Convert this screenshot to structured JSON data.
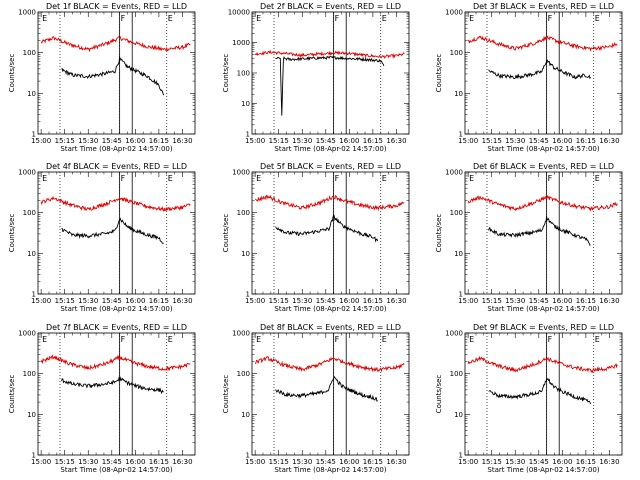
{
  "chart_data": [
    {
      "title": "Det 1f BLACK = Events, RED = LLD",
      "ylabel": "Counts/sec",
      "xlabel": "Start Time (08-Apr-02 14:57:00)",
      "type": "line",
      "yscale": "log",
      "ylim": [
        1,
        1000
      ],
      "xticks": [
        "15:00",
        "15:15",
        "15:30",
        "15:45",
        "16:00",
        "16:15",
        "16:30"
      ],
      "yticks": [
        "1",
        "10",
        "100",
        "1000"
      ],
      "markers": [
        {
          "label": "E",
          "time": "15:00"
        },
        {
          "label": "F",
          "time": "15:50"
        },
        {
          "label": "E",
          "time": "16:20"
        }
      ],
      "solid_lines": [
        "15:50",
        "15:58"
      ],
      "dotted_lines": [
        "15:12",
        "15:50",
        "16:20"
      ],
      "series": [
        {
          "color": "#e00000",
          "x": [
            "15:00",
            "15:08",
            "15:18",
            "15:30",
            "15:42",
            "15:50",
            "15:58",
            "16:08",
            "16:18",
            "16:30",
            "16:35"
          ],
          "y": [
            180,
            230,
            160,
            120,
            170,
            230,
            180,
            140,
            120,
            135,
            160
          ]
        },
        {
          "color": "#000000",
          "x": [
            "15:13",
            "15:20",
            "15:30",
            "15:40",
            "15:47",
            "15:50",
            "15:55",
            "16:00",
            "16:08",
            "16:15",
            "16:18"
          ],
          "y": [
            38,
            28,
            26,
            30,
            35,
            70,
            45,
            36,
            26,
            16,
            9
          ]
        }
      ]
    },
    {
      "title": "Det 2f BLACK = Events, RED = LLD",
      "ylabel": "Counts/sec",
      "xlabel": "Start Time (08-Apr-02 14:57:00)",
      "type": "line",
      "yscale": "log",
      "ylim": [
        1,
        10000
      ],
      "xticks": [
        "15:00",
        "15:15",
        "15:30",
        "15:45",
        "16:00",
        "16:15",
        "16:30"
      ],
      "yticks": [
        "1",
        "10",
        "100",
        "1000",
        "10000"
      ],
      "markers": [
        {
          "label": "E",
          "time": "15:00"
        },
        {
          "label": "F",
          "time": "15:50"
        },
        {
          "label": "E",
          "time": "16:20"
        }
      ],
      "solid_lines": [
        "15:50",
        "15:58"
      ],
      "dotted_lines": [
        "15:12",
        "15:50",
        "16:20"
      ],
      "series": [
        {
          "color": "#e00000",
          "x": [
            "15:00",
            "15:10",
            "15:20",
            "15:30",
            "15:40",
            "15:50",
            "16:00",
            "16:10",
            "16:20",
            "16:30",
            "16:35"
          ],
          "y": [
            420,
            480,
            430,
            380,
            420,
            460,
            440,
            380,
            340,
            370,
            420
          ]
        },
        {
          "color": "#000000",
          "x": [
            "15:13",
            "15:16",
            "15:17",
            "15:18",
            "15:22",
            "15:30",
            "15:40",
            "15:50",
            "16:00",
            "16:10",
            "16:20",
            "16:22"
          ],
          "y": [
            300,
            300,
            4,
            300,
            280,
            290,
            310,
            320,
            300,
            280,
            250,
            170
          ]
        }
      ]
    },
    {
      "title": "Det 3f BLACK = Events, RED = LLD",
      "ylabel": "Counts/sec",
      "xlabel": "Start Time (08-Apr-02 14:57:00)",
      "type": "line",
      "yscale": "log",
      "ylim": [
        1,
        1000
      ],
      "xticks": [
        "15:00",
        "15:15",
        "15:30",
        "15:45",
        "16:00",
        "16:15",
        "16:30"
      ],
      "yticks": [
        "1",
        "10",
        "100",
        "1000"
      ],
      "markers": [
        {
          "label": "E",
          "time": "15:00"
        },
        {
          "label": "F",
          "time": "15:50"
        },
        {
          "label": "E",
          "time": "16:20"
        }
      ],
      "solid_lines": [
        "15:50",
        "15:58"
      ],
      "dotted_lines": [
        "15:12",
        "15:50",
        "16:20"
      ],
      "series": [
        {
          "color": "#e00000",
          "x": [
            "15:00",
            "15:08",
            "15:18",
            "15:30",
            "15:42",
            "15:50",
            "15:58",
            "16:08",
            "16:18",
            "16:30",
            "16:35"
          ],
          "y": [
            190,
            240,
            170,
            125,
            170,
            235,
            185,
            145,
            125,
            140,
            165
          ]
        },
        {
          "color": "#000000",
          "x": [
            "15:13",
            "15:20",
            "15:30",
            "15:40",
            "15:47",
            "15:50",
            "15:55",
            "16:00",
            "16:08",
            "16:15",
            "16:18"
          ],
          "y": [
            36,
            27,
            25,
            29,
            34,
            65,
            42,
            34,
            25,
            28,
            25
          ]
        }
      ]
    },
    {
      "title": "Det 4f BLACK = Events, RED = LLD",
      "ylabel": "Counts/sec",
      "xlabel": "Start Time (08-Apr-02 14:57:00)",
      "type": "line",
      "yscale": "log",
      "ylim": [
        1,
        1000
      ],
      "xticks": [
        "15:00",
        "15:15",
        "15:30",
        "15:45",
        "16:00",
        "16:15",
        "16:30"
      ],
      "yticks": [
        "1",
        "10",
        "100",
        "1000"
      ],
      "markers": [
        {
          "label": "E",
          "time": "15:00"
        },
        {
          "label": "F",
          "time": "15:50"
        },
        {
          "label": "E",
          "time": "16:20"
        }
      ],
      "solid_lines": [
        "15:50",
        "15:58"
      ],
      "dotted_lines": [
        "15:12",
        "15:50",
        "16:20"
      ],
      "series": [
        {
          "color": "#e00000",
          "x": [
            "15:00",
            "15:08",
            "15:18",
            "15:30",
            "15:42",
            "15:50",
            "15:58",
            "16:08",
            "16:18",
            "16:30",
            "16:35"
          ],
          "y": [
            180,
            230,
            160,
            120,
            170,
            230,
            180,
            140,
            120,
            135,
            160
          ]
        },
        {
          "color": "#000000",
          "x": [
            "15:13",
            "15:20",
            "15:30",
            "15:40",
            "15:47",
            "15:50",
            "15:55",
            "16:00",
            "16:08",
            "16:15",
            "16:18"
          ],
          "y": [
            40,
            28,
            27,
            30,
            35,
            72,
            45,
            36,
            28,
            24,
            18
          ]
        }
      ]
    },
    {
      "title": "Det 5f BLACK = Events, RED = LLD",
      "ylabel": "Counts/sec",
      "xlabel": "Start Time (08-Apr-02 14:57:00)",
      "type": "line",
      "yscale": "log",
      "ylim": [
        1,
        1000
      ],
      "xticks": [
        "15:00",
        "15:15",
        "15:30",
        "15:45",
        "16:00",
        "16:15",
        "16:30"
      ],
      "yticks": [
        "1",
        "10",
        "100",
        "1000"
      ],
      "markers": [
        {
          "label": "E",
          "time": "15:00"
        },
        {
          "label": "F",
          "time": "15:50"
        },
        {
          "label": "E",
          "time": "16:20"
        }
      ],
      "solid_lines": [
        "15:50",
        "15:58"
      ],
      "dotted_lines": [
        "15:12",
        "15:50",
        "16:20"
      ],
      "series": [
        {
          "color": "#e00000",
          "x": [
            "15:00",
            "15:08",
            "15:18",
            "15:30",
            "15:42",
            "15:50",
            "15:58",
            "16:08",
            "16:18",
            "16:30",
            "16:35"
          ],
          "y": [
            200,
            250,
            170,
            130,
            180,
            250,
            190,
            150,
            130,
            150,
            175
          ]
        },
        {
          "color": "#000000",
          "x": [
            "15:13",
            "15:20",
            "15:30",
            "15:40",
            "15:47",
            "15:50",
            "15:55",
            "16:00",
            "16:08",
            "16:15",
            "16:18"
          ],
          "y": [
            45,
            32,
            30,
            35,
            40,
            80,
            50,
            40,
            30,
            25,
            20
          ]
        }
      ]
    },
    {
      "title": "Det 6f BLACK = Events, RED = LLD",
      "ylabel": "Counts/sec",
      "xlabel": "Start Time (08-Apr-02 14:57:00)",
      "type": "line",
      "yscale": "log",
      "ylim": [
        1,
        1000
      ],
      "xticks": [
        "15:00",
        "15:15",
        "15:30",
        "15:45",
        "16:00",
        "16:15",
        "16:30"
      ],
      "yticks": [
        "1",
        "10",
        "100",
        "1000"
      ],
      "markers": [
        {
          "label": "E",
          "time": "15:00"
        },
        {
          "label": "F",
          "time": "15:50"
        },
        {
          "label": "E",
          "time": "16:20"
        }
      ],
      "solid_lines": [
        "15:50",
        "15:58"
      ],
      "dotted_lines": [
        "15:12",
        "15:50",
        "16:20"
      ],
      "series": [
        {
          "color": "#e00000",
          "x": [
            "15:00",
            "15:08",
            "15:18",
            "15:30",
            "15:42",
            "15:50",
            "15:58",
            "16:08",
            "16:18",
            "16:30",
            "16:35"
          ],
          "y": [
            190,
            240,
            165,
            125,
            175,
            240,
            185,
            145,
            125,
            140,
            170
          ]
        },
        {
          "color": "#000000",
          "x": [
            "15:13",
            "15:20",
            "15:30",
            "15:40",
            "15:47",
            "15:50",
            "15:55",
            "16:00",
            "16:08",
            "16:15",
            "16:18"
          ],
          "y": [
            40,
            29,
            28,
            32,
            37,
            75,
            46,
            37,
            28,
            22,
            16
          ]
        }
      ]
    },
    {
      "title": "Det 7f BLACK = Events, RED = LLD",
      "ylabel": "Counts/sec",
      "xlabel": "Start Time (08-Apr-02 14:57:00)",
      "type": "line",
      "yscale": "log",
      "ylim": [
        1,
        1000
      ],
      "xticks": [
        "15:00",
        "15:15",
        "15:30",
        "15:45",
        "16:00",
        "16:15",
        "16:30"
      ],
      "yticks": [
        "1",
        "10",
        "100",
        "1000"
      ],
      "markers": [
        {
          "label": "E",
          "time": "15:00"
        },
        {
          "label": "F",
          "time": "15:50"
        },
        {
          "label": "E",
          "time": "16:20"
        }
      ],
      "solid_lines": [
        "15:50",
        "15:58"
      ],
      "dotted_lines": [
        "15:12",
        "15:50",
        "16:20"
      ],
      "series": [
        {
          "color": "#e00000",
          "x": [
            "15:00",
            "15:08",
            "15:18",
            "15:30",
            "15:42",
            "15:50",
            "15:58",
            "16:08",
            "16:18",
            "16:30",
            "16:35"
          ],
          "y": [
            200,
            260,
            175,
            135,
            180,
            250,
            190,
            150,
            130,
            150,
            175
          ]
        },
        {
          "color": "#000000",
          "x": [
            "15:13",
            "15:20",
            "15:30",
            "15:40",
            "15:47",
            "15:50",
            "15:55",
            "16:00",
            "16:08",
            "16:15",
            "16:18"
          ],
          "y": [
            70,
            55,
            50,
            55,
            62,
            75,
            60,
            50,
            42,
            40,
            35
          ]
        }
      ]
    },
    {
      "title": "Det 8f BLACK = Events, RED = LLD",
      "ylabel": "Counts/sec",
      "xlabel": "Start Time (08-Apr-02 14:57:00)",
      "type": "line",
      "yscale": "log",
      "ylim": [
        1,
        1000
      ],
      "xticks": [
        "15:00",
        "15:15",
        "15:30",
        "15:45",
        "16:00",
        "16:15",
        "16:30"
      ],
      "yticks": [
        "1",
        "10",
        "100",
        "1000"
      ],
      "markers": [
        {
          "label": "E",
          "time": "15:00"
        },
        {
          "label": "F",
          "time": "15:50"
        },
        {
          "label": "E",
          "time": "16:20"
        }
      ],
      "solid_lines": [
        "15:50",
        "15:58"
      ],
      "dotted_lines": [
        "15:12",
        "15:50",
        "16:20"
      ],
      "series": [
        {
          "color": "#e00000",
          "x": [
            "15:00",
            "15:08",
            "15:18",
            "15:30",
            "15:42",
            "15:50",
            "15:58",
            "16:08",
            "16:18",
            "16:30",
            "16:35"
          ],
          "y": [
            190,
            240,
            165,
            125,
            175,
            240,
            185,
            145,
            125,
            140,
            170
          ]
        },
        {
          "color": "#000000",
          "x": [
            "15:13",
            "15:20",
            "15:30",
            "15:40",
            "15:47",
            "15:50",
            "15:55",
            "16:00",
            "16:08",
            "16:15",
            "16:18"
          ],
          "y": [
            40,
            30,
            29,
            33,
            40,
            85,
            50,
            40,
            30,
            26,
            22
          ]
        }
      ]
    },
    {
      "title": "Det 9f BLACK = Events, RED = LLD",
      "ylabel": "Counts/sec",
      "xlabel": "Start Time (08-Apr-02 14:57:00)",
      "type": "line",
      "yscale": "log",
      "ylim": [
        1,
        1000
      ],
      "xticks": [
        "15:00",
        "15:15",
        "15:30",
        "15:45",
        "16:00",
        "16:15",
        "16:30"
      ],
      "yticks": [
        "1",
        "10",
        "100",
        "1000"
      ],
      "markers": [
        {
          "label": "E",
          "time": "15:00"
        },
        {
          "label": "F",
          "time": "15:50"
        },
        {
          "label": "E",
          "time": "16:20"
        }
      ],
      "solid_lines": [
        "15:50",
        "15:58"
      ],
      "dotted_lines": [
        "15:12",
        "15:50",
        "16:20"
      ],
      "series": [
        {
          "color": "#e00000",
          "x": [
            "15:00",
            "15:08",
            "15:18",
            "15:30",
            "15:42",
            "15:50",
            "15:58",
            "16:08",
            "16:18",
            "16:30",
            "16:35"
          ],
          "y": [
            185,
            235,
            160,
            120,
            170,
            235,
            180,
            140,
            120,
            135,
            165
          ]
        },
        {
          "color": "#000000",
          "x": [
            "15:13",
            "15:20",
            "15:30",
            "15:40",
            "15:47",
            "15:50",
            "15:55",
            "16:00",
            "16:08",
            "16:15",
            "16:18"
          ],
          "y": [
            38,
            28,
            27,
            31,
            36,
            78,
            46,
            36,
            27,
            22,
            18
          ]
        }
      ]
    }
  ]
}
